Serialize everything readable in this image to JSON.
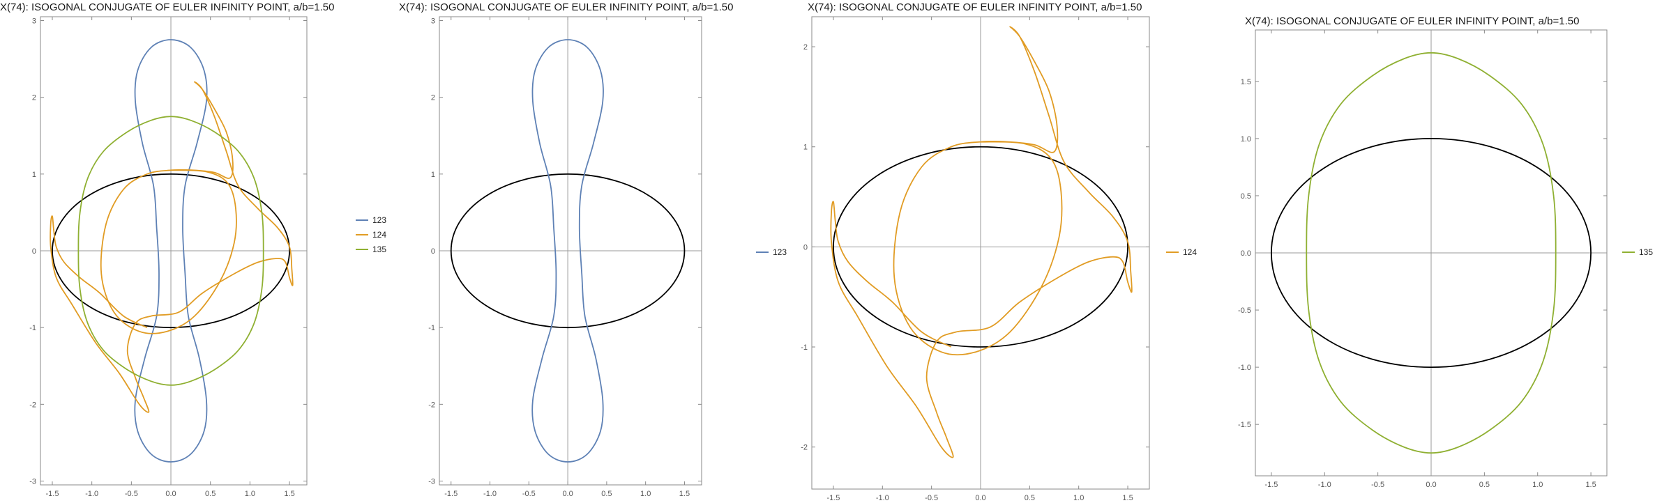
{
  "chart_data": [
    {
      "type": "line",
      "title": "X(74): ISOGONAL CONJUGATE OF EULER INFINITY POINT, a/b=1.50",
      "xlim": [
        -1.65,
        1.72
      ],
      "ylim": [
        -3.05,
        3.05
      ],
      "xticks": [
        -1.5,
        -1.0,
        -0.5,
        0.0,
        0.5,
        1.0,
        1.5
      ],
      "yticks": [
        -3,
        -2,
        -1,
        0,
        1,
        2,
        3
      ],
      "xtick_labels": [
        "-1.5",
        "-1.0",
        "-0.5",
        "0.0",
        "0.5",
        "1.0",
        "1.5"
      ],
      "ytick_labels": [
        "-3",
        "-2",
        "-1",
        "0",
        "1",
        "2",
        "3"
      ],
      "ellipse": {
        "a": 1.5,
        "b": 1.0,
        "color": "#000000"
      },
      "legend_position": "right",
      "series": [
        {
          "name": "123",
          "color": "#5E81B5",
          "points": [
            [
              0.0,
              2.75
            ],
            [
              0.25,
              2.65
            ],
            [
              0.42,
              2.35
            ],
            [
              0.45,
              1.95
            ],
            [
              0.33,
              1.4
            ],
            [
              0.18,
              0.85
            ],
            [
              0.15,
              0.3
            ],
            [
              0.18,
              -0.3
            ],
            [
              0.22,
              -0.85
            ],
            [
              0.36,
              -1.4
            ],
            [
              0.45,
              -1.95
            ],
            [
              0.42,
              -2.35
            ],
            [
              0.25,
              -2.65
            ],
            [
              0.0,
              -2.75
            ],
            [
              -0.25,
              -2.65
            ],
            [
              -0.42,
              -2.35
            ],
            [
              -0.45,
              -1.95
            ],
            [
              -0.33,
              -1.4
            ],
            [
              -0.18,
              -0.85
            ],
            [
              -0.15,
              -0.3
            ],
            [
              -0.18,
              0.3
            ],
            [
              -0.22,
              0.85
            ],
            [
              -0.36,
              1.4
            ],
            [
              -0.45,
              1.95
            ],
            [
              -0.42,
              2.35
            ],
            [
              -0.25,
              2.65
            ],
            [
              0.0,
              2.75
            ]
          ]
        },
        {
          "name": "124",
          "color": "#E19C24",
          "points": [
            [
              0.0,
              1.05
            ],
            [
              0.45,
              1.03
            ],
            [
              0.72,
              0.88
            ],
            [
              0.82,
              0.55
            ],
            [
              0.8,
              0.1
            ],
            [
              0.62,
              -0.4
            ],
            [
              0.3,
              -0.85
            ],
            [
              -0.05,
              -1.05
            ],
            [
              -0.4,
              -1.05
            ],
            [
              -0.72,
              -0.8
            ],
            [
              -0.88,
              -0.3
            ],
            [
              -0.82,
              0.35
            ],
            [
              -0.6,
              0.8
            ],
            [
              -0.3,
              1.0
            ],
            [
              0.0,
              1.05
            ],
            [
              0.28,
              1.05
            ],
            [
              0.55,
              1.02
            ],
            [
              0.75,
              0.95
            ],
            [
              0.78,
              1.2
            ],
            [
              0.7,
              1.55
            ],
            [
              0.55,
              1.85
            ],
            [
              0.4,
              2.1
            ],
            [
              0.3,
              2.2
            ],
            [
              0.4,
              2.1
            ],
            [
              0.55,
              1.75
            ],
            [
              0.7,
              1.3
            ],
            [
              0.85,
              0.85
            ],
            [
              1.1,
              0.55
            ],
            [
              1.35,
              0.3
            ],
            [
              1.5,
              0.05
            ],
            [
              1.53,
              -0.25
            ],
            [
              1.54,
              -0.45
            ],
            [
              1.5,
              -0.35
            ],
            [
              1.45,
              -0.15
            ],
            [
              1.35,
              -0.1
            ],
            [
              1.1,
              -0.15
            ],
            [
              0.8,
              -0.3
            ],
            [
              0.4,
              -0.55
            ],
            [
              0.1,
              -0.8
            ],
            [
              -0.25,
              -0.85
            ],
            [
              -0.45,
              -0.95
            ],
            [
              -0.55,
              -1.3
            ],
            [
              -0.45,
              -1.65
            ],
            [
              -0.35,
              -1.9
            ],
            [
              -0.28,
              -2.1
            ],
            [
              -0.4,
              -2.0
            ],
            [
              -0.65,
              -1.6
            ],
            [
              -0.95,
              -1.2
            ],
            [
              -1.25,
              -0.7
            ],
            [
              -1.45,
              -0.35
            ],
            [
              -1.52,
              0.05
            ],
            [
              -1.52,
              0.35
            ],
            [
              -1.5,
              0.45
            ],
            [
              -1.48,
              0.25
            ],
            [
              -1.45,
              0.05
            ],
            [
              -1.35,
              -0.15
            ],
            [
              -1.15,
              -0.35
            ],
            [
              -0.9,
              -0.55
            ],
            [
              -0.6,
              -0.85
            ],
            [
              -0.3,
              -1.0
            ]
          ]
        },
        {
          "name": "135",
          "color": "#8FB032",
          "points": [
            [
              0.0,
              1.75
            ],
            [
              0.25,
              1.7
            ],
            [
              0.55,
              1.55
            ],
            [
              0.85,
              1.3
            ],
            [
              1.05,
              0.95
            ],
            [
              1.15,
              0.5
            ],
            [
              1.17,
              0.0
            ],
            [
              1.15,
              -0.5
            ],
            [
              1.05,
              -0.95
            ],
            [
              0.85,
              -1.3
            ],
            [
              0.55,
              -1.55
            ],
            [
              0.25,
              -1.7
            ],
            [
              0.0,
              -1.75
            ],
            [
              -0.25,
              -1.7
            ],
            [
              -0.55,
              -1.55
            ],
            [
              -0.85,
              -1.3
            ],
            [
              -1.05,
              -0.95
            ],
            [
              -1.15,
              -0.5
            ],
            [
              -1.17,
              0.0
            ],
            [
              -1.15,
              0.5
            ],
            [
              -1.05,
              0.95
            ],
            [
              -0.85,
              1.3
            ],
            [
              -0.55,
              1.55
            ],
            [
              -0.25,
              1.7
            ],
            [
              0.0,
              1.75
            ]
          ]
        }
      ]
    },
    {
      "type": "line",
      "title": "X(74): ISOGONAL CONJUGATE OF EULER INFINITY POINT, a/b=1.50",
      "xlim": [
        -1.65,
        1.72
      ],
      "ylim": [
        -3.05,
        3.05
      ],
      "xticks": [
        -1.5,
        -1.0,
        -0.5,
        0.0,
        0.5,
        1.0,
        1.5
      ],
      "yticks": [
        -3,
        -2,
        -1,
        0,
        1,
        2,
        3
      ],
      "xtick_labels": [
        "-1.5",
        "-1.0",
        "-0.5",
        "0.0",
        "0.5",
        "1.0",
        "1.5"
      ],
      "ytick_labels": [
        "-3",
        "-2",
        "-1",
        "0",
        "1",
        "2",
        "3"
      ],
      "ellipse": {
        "a": 1.5,
        "b": 1.0,
        "color": "#000000"
      },
      "legend_position": "right",
      "series": [
        {
          "name": "123",
          "color": "#5E81B5",
          "points": [
            [
              0.0,
              2.75
            ],
            [
              0.25,
              2.65
            ],
            [
              0.42,
              2.35
            ],
            [
              0.45,
              1.95
            ],
            [
              0.33,
              1.4
            ],
            [
              0.18,
              0.85
            ],
            [
              0.15,
              0.3
            ],
            [
              0.18,
              -0.3
            ],
            [
              0.22,
              -0.85
            ],
            [
              0.36,
              -1.4
            ],
            [
              0.45,
              -1.95
            ],
            [
              0.42,
              -2.35
            ],
            [
              0.25,
              -2.65
            ],
            [
              0.0,
              -2.75
            ],
            [
              -0.25,
              -2.65
            ],
            [
              -0.42,
              -2.35
            ],
            [
              -0.45,
              -1.95
            ],
            [
              -0.33,
              -1.4
            ],
            [
              -0.18,
              -0.85
            ],
            [
              -0.15,
              -0.3
            ],
            [
              -0.18,
              0.3
            ],
            [
              -0.22,
              0.85
            ],
            [
              -0.36,
              1.4
            ],
            [
              -0.45,
              1.95
            ],
            [
              -0.42,
              2.35
            ],
            [
              -0.25,
              2.65
            ],
            [
              0.0,
              2.75
            ]
          ]
        }
      ]
    },
    {
      "type": "line",
      "title": "X(74): ISOGONAL CONJUGATE OF EULER INFINITY POINT, a/b=1.50",
      "xlim": [
        -1.72,
        1.72
      ],
      "ylim": [
        -2.42,
        2.3
      ],
      "xticks": [
        -1.5,
        -1.0,
        -0.5,
        0.0,
        0.5,
        1.0,
        1.5
      ],
      "yticks": [
        -2,
        -1,
        0,
        1,
        2
      ],
      "xtick_labels": [
        "-1.5",
        "-1.0",
        "-0.5",
        "0.0",
        "0.5",
        "1.0",
        "1.5"
      ],
      "ytick_labels": [
        "-2",
        "-1",
        "0",
        "1",
        "2"
      ],
      "ellipse": {
        "a": 1.5,
        "b": 1.0,
        "color": "#000000"
      },
      "legend_position": "right",
      "series": [
        {
          "name": "124",
          "color": "#E19C24",
          "points": [
            [
              0.0,
              1.05
            ],
            [
              0.45,
              1.03
            ],
            [
              0.72,
              0.88
            ],
            [
              0.82,
              0.55
            ],
            [
              0.8,
              0.1
            ],
            [
              0.62,
              -0.4
            ],
            [
              0.3,
              -0.85
            ],
            [
              -0.05,
              -1.05
            ],
            [
              -0.4,
              -1.05
            ],
            [
              -0.72,
              -0.8
            ],
            [
              -0.88,
              -0.3
            ],
            [
              -0.82,
              0.35
            ],
            [
              -0.6,
              0.8
            ],
            [
              -0.3,
              1.0
            ],
            [
              0.0,
              1.05
            ],
            [
              0.28,
              1.05
            ],
            [
              0.55,
              1.02
            ],
            [
              0.75,
              0.95
            ],
            [
              0.78,
              1.2
            ],
            [
              0.7,
              1.55
            ],
            [
              0.55,
              1.85
            ],
            [
              0.4,
              2.1
            ],
            [
              0.3,
              2.2
            ],
            [
              0.4,
              2.1
            ],
            [
              0.55,
              1.75
            ],
            [
              0.7,
              1.3
            ],
            [
              0.85,
              0.85
            ],
            [
              1.1,
              0.55
            ],
            [
              1.35,
              0.3
            ],
            [
              1.5,
              0.05
            ],
            [
              1.53,
              -0.25
            ],
            [
              1.54,
              -0.45
            ],
            [
              1.5,
              -0.35
            ],
            [
              1.45,
              -0.15
            ],
            [
              1.35,
              -0.1
            ],
            [
              1.1,
              -0.15
            ],
            [
              0.8,
              -0.3
            ],
            [
              0.4,
              -0.55
            ],
            [
              0.1,
              -0.8
            ],
            [
              -0.25,
              -0.85
            ],
            [
              -0.45,
              -0.95
            ],
            [
              -0.55,
              -1.3
            ],
            [
              -0.45,
              -1.65
            ],
            [
              -0.35,
              -1.9
            ],
            [
              -0.28,
              -2.1
            ],
            [
              -0.4,
              -2.0
            ],
            [
              -0.65,
              -1.6
            ],
            [
              -0.95,
              -1.2
            ],
            [
              -1.25,
              -0.7
            ],
            [
              -1.45,
              -0.35
            ],
            [
              -1.52,
              0.05
            ],
            [
              -1.52,
              0.35
            ],
            [
              -1.5,
              0.45
            ],
            [
              -1.48,
              0.25
            ],
            [
              -1.45,
              0.05
            ],
            [
              -1.35,
              -0.15
            ],
            [
              -1.15,
              -0.35
            ],
            [
              -0.9,
              -0.55
            ],
            [
              -0.6,
              -0.85
            ],
            [
              -0.3,
              -1.0
            ]
          ]
        }
      ]
    },
    {
      "type": "line",
      "title": "X(74): ISOGONAL CONJUGATE OF EULER INFINITY POINT, a/b=1.50",
      "xlim": [
        -1.65,
        1.65
      ],
      "ylim": [
        -1.95,
        1.95
      ],
      "xticks": [
        -1.5,
        -1.0,
        -0.5,
        0.0,
        0.5,
        1.0,
        1.5
      ],
      "yticks": [
        -1.5,
        -1.0,
        -0.5,
        0.0,
        0.5,
        1.0,
        1.5
      ],
      "xtick_labels": [
        "-1.5",
        "-1.0",
        "-0.5",
        "0.0",
        "0.5",
        "1.0",
        "1.5"
      ],
      "ytick_labels": [
        "-1.5",
        "-1.0",
        "-0.5",
        "0.0",
        "0.5",
        "1.0",
        "1.5"
      ],
      "ellipse": {
        "a": 1.5,
        "b": 1.0,
        "color": "#000000"
      },
      "legend_position": "right",
      "series": [
        {
          "name": "135",
          "color": "#8FB032",
          "points": [
            [
              0.0,
              1.75
            ],
            [
              0.25,
              1.7
            ],
            [
              0.55,
              1.55
            ],
            [
              0.85,
              1.3
            ],
            [
              1.05,
              0.95
            ],
            [
              1.15,
              0.5
            ],
            [
              1.17,
              0.0
            ],
            [
              1.15,
              -0.5
            ],
            [
              1.05,
              -0.95
            ],
            [
              0.85,
              -1.3
            ],
            [
              0.55,
              -1.55
            ],
            [
              0.25,
              -1.7
            ],
            [
              0.0,
              -1.75
            ],
            [
              -0.25,
              -1.7
            ],
            [
              -0.55,
              -1.55
            ],
            [
              -0.85,
              -1.3
            ],
            [
              -1.05,
              -0.95
            ],
            [
              -1.15,
              -0.5
            ],
            [
              -1.17,
              0.0
            ],
            [
              -1.15,
              0.5
            ],
            [
              -1.05,
              0.95
            ],
            [
              -0.85,
              1.3
            ],
            [
              -0.55,
              1.55
            ],
            [
              -0.25,
              1.7
            ],
            [
              0.0,
              1.75
            ]
          ]
        }
      ]
    }
  ]
}
